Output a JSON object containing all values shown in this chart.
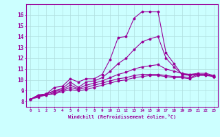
{
  "x": [
    0,
    1,
    2,
    3,
    4,
    5,
    6,
    7,
    8,
    9,
    10,
    11,
    12,
    13,
    14,
    15,
    16,
    17,
    18,
    19,
    20,
    21,
    22,
    23
  ],
  "line1": [
    8.2,
    8.6,
    8.7,
    9.3,
    9.4,
    10.1,
    9.8,
    10.1,
    10.1,
    10.5,
    11.9,
    13.9,
    14.0,
    15.7,
    16.3,
    16.3,
    16.3,
    12.5,
    11.5,
    10.5,
    10.5,
    10.6,
    10.6,
    10.4
  ],
  "line2": [
    8.2,
    8.6,
    8.7,
    9.0,
    9.2,
    9.8,
    9.3,
    9.8,
    9.9,
    10.2,
    10.8,
    11.5,
    12.0,
    12.8,
    13.5,
    13.8,
    14.0,
    12.0,
    11.2,
    10.5,
    10.4,
    10.5,
    10.5,
    10.3
  ],
  "line3": [
    8.2,
    8.5,
    8.7,
    8.9,
    9.1,
    9.5,
    9.2,
    9.5,
    9.7,
    9.9,
    10.2,
    10.5,
    10.7,
    11.0,
    11.2,
    11.3,
    11.4,
    11.0,
    10.8,
    10.6,
    10.5,
    10.5,
    10.5,
    10.3
  ],
  "line4": [
    8.2,
    8.5,
    8.6,
    8.8,
    9.0,
    9.3,
    9.1,
    9.3,
    9.5,
    9.7,
    9.9,
    10.1,
    10.2,
    10.4,
    10.5,
    10.5,
    10.5,
    10.4,
    10.3,
    10.3,
    10.2,
    10.5,
    10.5,
    10.3
  ],
  "line5": [
    8.2,
    8.4,
    8.6,
    8.7,
    8.9,
    9.1,
    9.0,
    9.1,
    9.3,
    9.5,
    9.7,
    9.9,
    10.0,
    10.2,
    10.3,
    10.4,
    10.4,
    10.3,
    10.2,
    10.2,
    10.1,
    10.4,
    10.4,
    10.3
  ],
  "color": "#990099",
  "bg_color": "#ccffff",
  "grid_color": "#b0dede",
  "xlabel": "Windchill (Refroidissement éolien,°C)",
  "ylim": [
    7.5,
    17.0
  ],
  "xlim": [
    -0.5,
    23.5
  ],
  "yticks": [
    8,
    9,
    10,
    11,
    12,
    13,
    14,
    15,
    16
  ],
  "xticks": [
    0,
    1,
    2,
    3,
    4,
    5,
    6,
    7,
    8,
    9,
    10,
    11,
    12,
    13,
    14,
    15,
    16,
    17,
    18,
    19,
    20,
    21,
    22,
    23
  ]
}
